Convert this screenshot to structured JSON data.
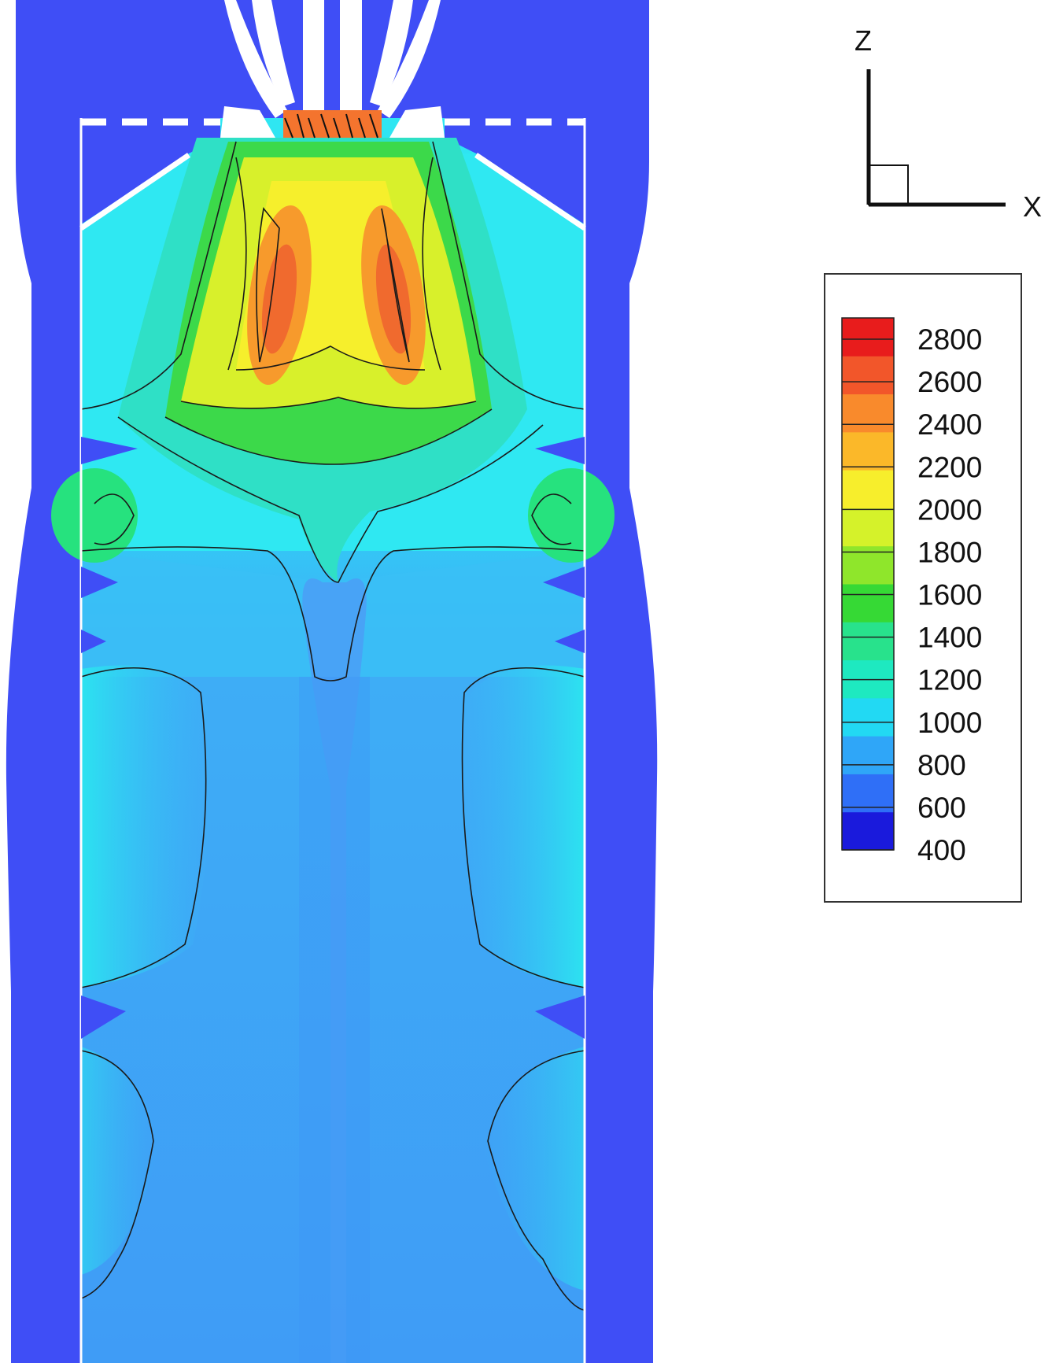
{
  "chart_data": {
    "type": "heatmap",
    "title": "",
    "xlabel": "",
    "ylabel": "",
    "axes_triad": {
      "vertical": "Z",
      "horizontal": "X"
    },
    "colorbar": {
      "levels": [
        400,
        600,
        800,
        1000,
        1200,
        1400,
        1600,
        1800,
        2000,
        2200,
        2400,
        2600,
        2800
      ],
      "tick_labels": [
        "2800",
        "2600",
        "2400",
        "2200",
        "2000",
        "1800",
        "1600",
        "1400",
        "1200",
        "1000",
        "800",
        "600",
        "400"
      ],
      "range": [
        400,
        2900
      ],
      "colors": [
        "#1a1adc",
        "#2f6ff7",
        "#2fa6f8",
        "#22d9f3",
        "#1ee9c0",
        "#28e28c",
        "#36d935",
        "#8fe62b",
        "#d5f22a",
        "#f7ee2c",
        "#fbb829",
        "#f98a2c",
        "#f2562a",
        "#e81c1c"
      ]
    },
    "field_colors": {
      "solid_wall": "#3f4ef6",
      "cold_gas": "#3e9ef7",
      "warm_gas": "#2fe0f5",
      "hot_core": "#f2842f"
    },
    "peak_regions": [
      {
        "name": "left-lobe",
        "approx_value": 2600
      },
      {
        "name": "right-lobe",
        "approx_value": 2600
      }
    ]
  }
}
